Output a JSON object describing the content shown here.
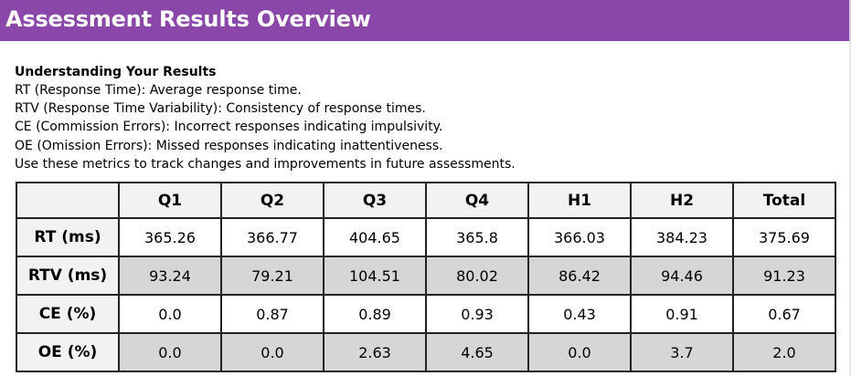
{
  "header": {
    "title": "Assessment Results Overview",
    "background_color": "#8a46a8"
  },
  "intro": {
    "heading": "Understanding Your Results",
    "lines": [
      "RT (Response Time): Average response time.",
      "RTV (Response Time Variability): Consistency of response times.",
      "CE (Commission Errors): Incorrect responses indicating impulsivity.",
      "OE (Omission Errors): Missed responses indicating inattentiveness.",
      "Use these metrics to track changes and improvements in future assessments."
    ]
  },
  "table": {
    "corner": "",
    "columns": [
      "Q1",
      "Q2",
      "Q3",
      "Q4",
      "H1",
      "H2",
      "Total"
    ],
    "rows": [
      {
        "label": "RT (ms)",
        "values": [
          "365.26",
          "366.77",
          "404.65",
          "365.8",
          "366.03",
          "384.23",
          "375.69"
        ]
      },
      {
        "label": "RTV (ms)",
        "values": [
          "93.24",
          "79.21",
          "104.51",
          "80.02",
          "86.42",
          "94.46",
          "91.23"
        ]
      },
      {
        "label": "CE (%)",
        "values": [
          "0.0",
          "0.87",
          "0.89",
          "0.93",
          "0.43",
          "0.91",
          "0.67"
        ]
      },
      {
        "label": "OE (%)",
        "values": [
          "0.0",
          "0.0",
          "2.63",
          "4.65",
          "0.0",
          "3.7",
          "2.0"
        ]
      }
    ],
    "colors": {
      "header_bg": "#f2f2f2",
      "even_row_bg": "#d6d6d6",
      "odd_row_bg": "#ffffff",
      "border": "#222222"
    }
  }
}
